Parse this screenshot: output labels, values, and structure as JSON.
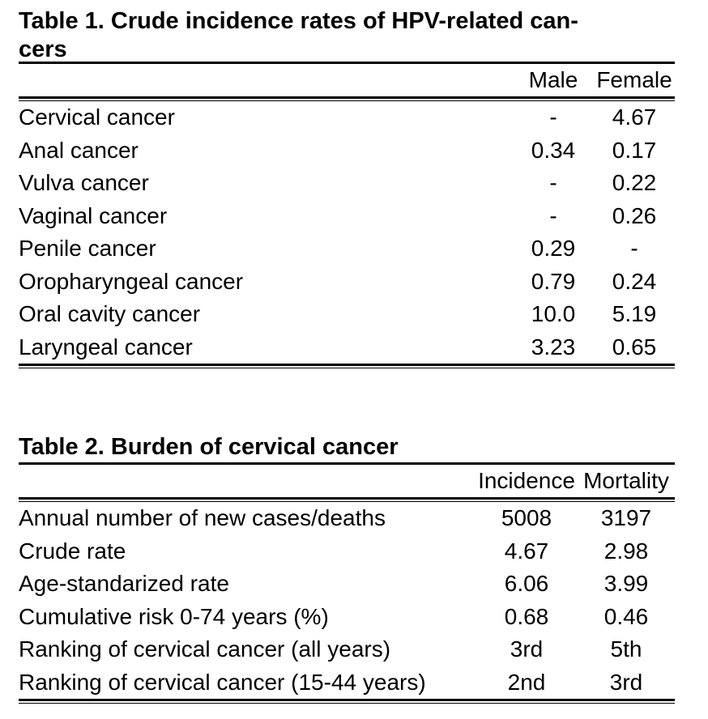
{
  "table1": {
    "title": "Table 1.  Crude incidence rates of HPV-related cancers",
    "title_line1": "Table 1.  Crude incidence rates of HPV-related can-",
    "title_line2": "cers",
    "columns": [
      "",
      "Male",
      "Female"
    ],
    "rows": [
      [
        "Cervical cancer",
        "-",
        "4.67"
      ],
      [
        "Anal cancer",
        "0.34",
        "0.17"
      ],
      [
        "Vulva cancer",
        "-",
        "0.22"
      ],
      [
        "Vaginal cancer",
        "-",
        "0.26"
      ],
      [
        "Penile cancer",
        "0.29",
        "-"
      ],
      [
        "Oropharyngeal cancer",
        "0.79",
        "0.24"
      ],
      [
        "Oral cavity cancer",
        "10.0",
        "5.19"
      ],
      [
        "Laryngeal cancer",
        "3.23",
        "0.65"
      ]
    ]
  },
  "table2": {
    "title": "Table 2. Burden of cervical cancer",
    "columns": [
      "",
      "Incidence",
      "Mortality"
    ],
    "rows": [
      [
        "Annual number of new cases/deaths",
        "5008",
        "3197"
      ],
      [
        "Crude rate",
        "4.67",
        "2.98"
      ],
      [
        "Age-standarized rate",
        "6.06",
        "3.99"
      ],
      [
        "Cumulative risk 0-74 years (%)",
        "0.68",
        "0.46"
      ],
      [
        "Ranking of cervical cancer (all years)",
        "3rd",
        "5th"
      ],
      [
        "Ranking of cervical cancer (15-44 years)",
        "2nd",
        "3rd"
      ]
    ]
  }
}
